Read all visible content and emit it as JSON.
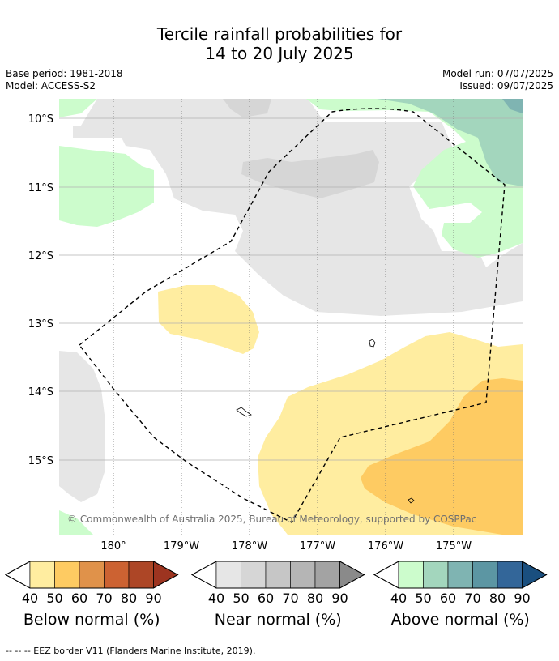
{
  "title": {
    "line1": "Tercile rainfall probabilities for",
    "line2": "14 to 20 July 2025"
  },
  "meta": {
    "base_period": "Base period: 1981-2018",
    "model": "Model: ACCESS-S2",
    "model_run": "Model run: 07/07/2025",
    "issued": "Issued: 09/07/2025"
  },
  "map": {
    "lat_labels": [
      "10°S",
      "11°S",
      "12°S",
      "13°S",
      "14°S",
      "15°S"
    ],
    "lon_labels": [
      "180°",
      "179°W",
      "178°W",
      "177°W",
      "176°W",
      "175°W"
    ],
    "copyright": "© Commonwealth of Australia 2025, Bureau of Meteorology, supported by COSPPac"
  },
  "colorbars": [
    {
      "label": "Below normal (%)",
      "ticks": [
        "40",
        "50",
        "60",
        "70",
        "80",
        "90"
      ],
      "colors": [
        "#ffeda0",
        "#fecb62",
        "#e0924a",
        "#cc6232",
        "#ad4626",
        "#9d3420"
      ]
    },
    {
      "label": "Near normal (%)",
      "ticks": [
        "40",
        "50",
        "60",
        "70",
        "80",
        "90"
      ],
      "colors": [
        "#e6e6e6",
        "#d6d6d6",
        "#c6c6c6",
        "#b5b5b5",
        "#a3a3a3",
        "#8a8a8a"
      ]
    },
    {
      "label": "Above normal (%)",
      "ticks": [
        "40",
        "50",
        "60",
        "70",
        "80",
        "90"
      ],
      "colors": [
        "#ccfccc",
        "#a3d6bd",
        "#7fb4b2",
        "#5c96a3",
        "#336699",
        "#1a4f7f"
      ]
    }
  ],
  "footer": "--  --  -- EEZ border V11 (Flanders Marine Institute, 2019)."
}
